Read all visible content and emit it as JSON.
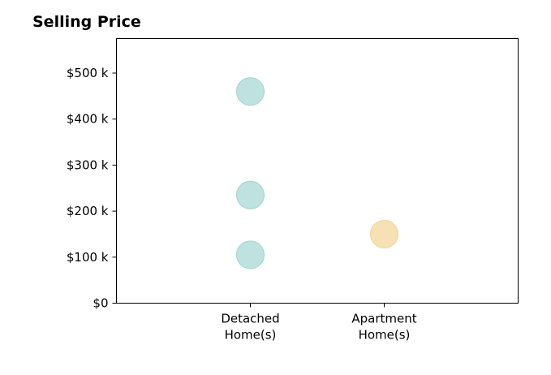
{
  "chart_data": {
    "type": "scatter",
    "title": "Selling Price",
    "xlabel": "",
    "ylabel": "",
    "categories": [
      [
        "Detached",
        "Home(s)"
      ],
      [
        "Apartment",
        "Home(s)"
      ]
    ],
    "xlim": [
      0,
      3
    ],
    "ylim": [
      0,
      575000
    ],
    "yticks": [
      {
        "value": 0,
        "label": "$0"
      },
      {
        "value": 100000,
        "label": "$100 k"
      },
      {
        "value": 200000,
        "label": "$200 k"
      },
      {
        "value": 300000,
        "label": "$300 k"
      },
      {
        "value": 400000,
        "label": "$400 k"
      },
      {
        "value": 500000,
        "label": "$500 k"
      }
    ],
    "grid": false,
    "legend": "none",
    "colors": {
      "Detached": "#a8d8d4",
      "Apartment": "#f2d79b"
    },
    "points": [
      {
        "category": 0,
        "y": 460000
      },
      {
        "category": 0,
        "y": 235000
      },
      {
        "category": 0,
        "y": 105000
      },
      {
        "category": 1,
        "y": 150000
      }
    ]
  }
}
